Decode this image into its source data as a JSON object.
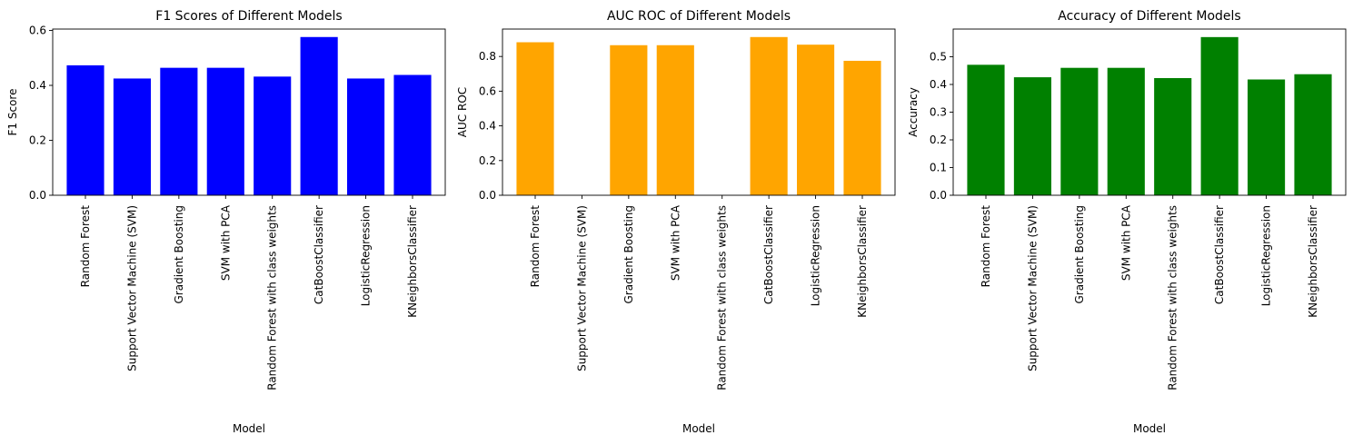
{
  "chart_data": [
    {
      "type": "bar",
      "title": "F1 Scores of Different Models",
      "xlabel": "Model",
      "ylabel": "F1 Score",
      "color": "#0000ff",
      "categories": [
        "Random Forest",
        "Support Vector Machine (SVM)",
        "Gradient Boosting",
        "SVM with PCA",
        "Random Forest with class weights",
        "CatBoostClassifier",
        "LogisticRegression",
        "KNeighborsClassifier"
      ],
      "values": [
        0.473,
        0.425,
        0.464,
        0.464,
        0.432,
        0.576,
        0.425,
        0.438
      ],
      "ylim": [
        0,
        0.605
      ],
      "yticks": [
        "0.0",
        "0.2",
        "0.4",
        "0.6"
      ],
      "ytick_values": [
        0,
        0.2,
        0.4,
        0.6
      ],
      "grid": false
    },
    {
      "type": "bar",
      "title": "AUC ROC of Different Models",
      "xlabel": "Model",
      "ylabel": "AUC ROC",
      "color": "#ffa500",
      "categories": [
        "Random Forest",
        "Support Vector Machine (SVM)",
        "Gradient Boosting",
        "SVM with PCA",
        "Random Forest with class weights",
        "CatBoostClassifier",
        "LogisticRegression",
        "KNeighborsClassifier"
      ],
      "values": [
        0.882,
        0,
        0.865,
        0.865,
        0,
        0.912,
        0.868,
        0.775
      ],
      "ylim": [
        0,
        0.958
      ],
      "yticks": [
        "0.0",
        "0.2",
        "0.4",
        "0.6",
        "0.8"
      ],
      "ytick_values": [
        0,
        0.2,
        0.4,
        0.6,
        0.8
      ],
      "grid": false
    },
    {
      "type": "bar",
      "title": "Accuracy of Different Models",
      "xlabel": "Model",
      "ylabel": "Accuracy",
      "color": "#008000",
      "categories": [
        "Random Forest",
        "Support Vector Machine (SVM)",
        "Gradient Boosting",
        "SVM with PCA",
        "Random Forest with class weights",
        "CatBoostClassifier",
        "LogisticRegression",
        "KNeighborsClassifier"
      ],
      "values": [
        0.471,
        0.426,
        0.46,
        0.46,
        0.423,
        0.571,
        0.418,
        0.437
      ],
      "ylim": [
        0,
        0.6
      ],
      "yticks": [
        "0.0",
        "0.1",
        "0.2",
        "0.3",
        "0.4",
        "0.5"
      ],
      "ytick_values": [
        0,
        0.1,
        0.2,
        0.3,
        0.4,
        0.5
      ],
      "grid": false
    }
  ]
}
